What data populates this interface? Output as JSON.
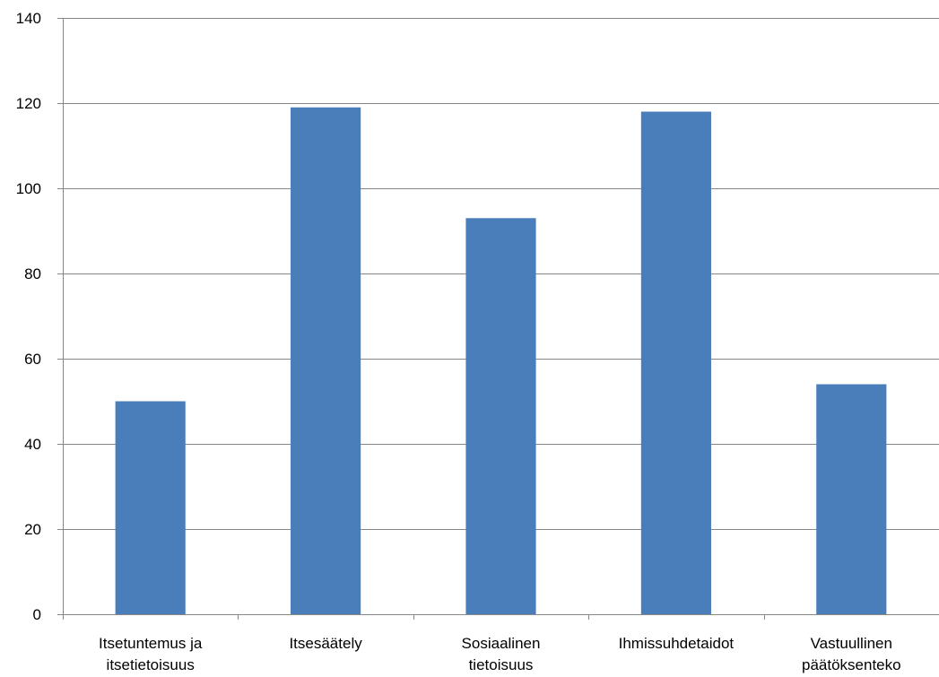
{
  "chart_data": {
    "type": "bar",
    "title": "",
    "xlabel": "",
    "ylabel": "",
    "categories": [
      [
        "Itsetuntemus ja",
        "itsetietoisuus"
      ],
      [
        "Itsesäätely"
      ],
      [
        "Sosiaalinen",
        "tietoisuus"
      ],
      [
        "Ihmissuhdetaidot"
      ],
      [
        "Vastuullinen",
        "päätöksenteko"
      ]
    ],
    "values": [
      50,
      119,
      93,
      118,
      54
    ],
    "ylim": [
      0,
      140
    ],
    "yticks": [
      0,
      20,
      40,
      60,
      80,
      100,
      120,
      140
    ],
    "grid": true,
    "legend": "none",
    "colors": {
      "bar": "#4a7ebb",
      "grid": "#868686",
      "text": "#000000"
    }
  }
}
